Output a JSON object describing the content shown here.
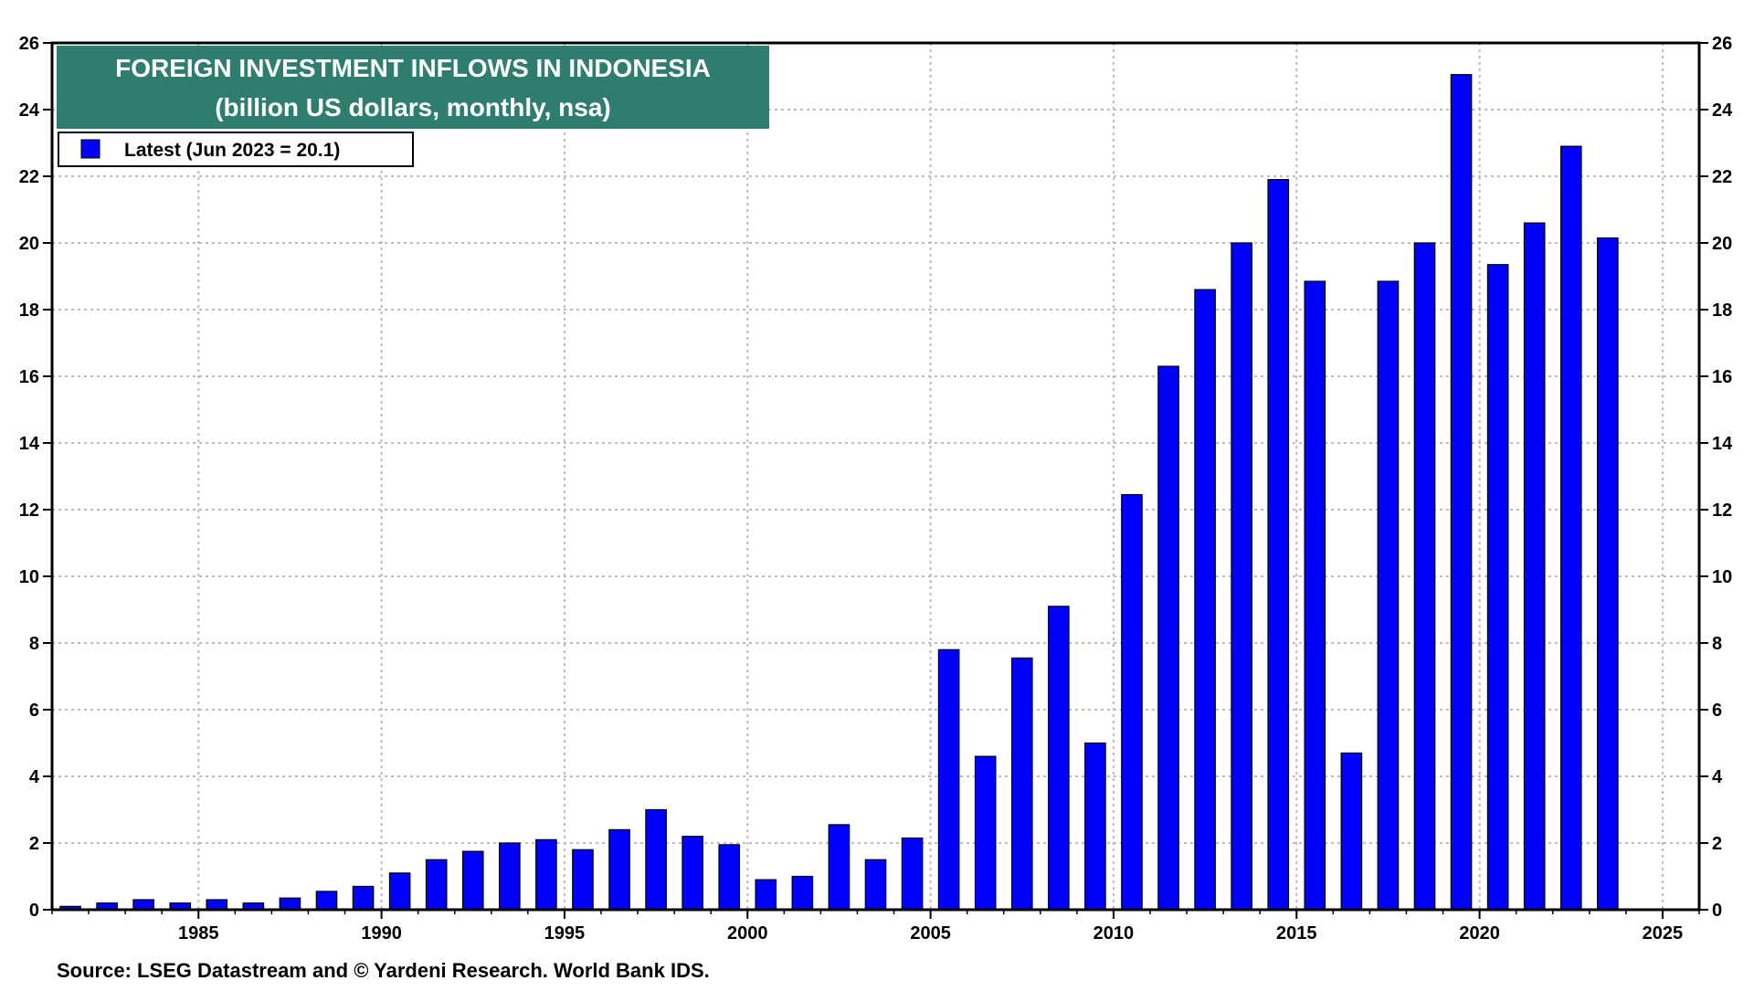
{
  "chart_data": {
    "type": "bar",
    "title": "FOREIGN INVESTMENT INFLOWS IN INDONESIA",
    "subtitle": "(billion US dollars, monthly, nsa)",
    "legend": {
      "label": "Latest (Jun 2023 = 20.1)",
      "placement": "top-left"
    },
    "source": "Source: LSEG Datastream and © Yardeni Research. World Bank IDS.",
    "x": [
      1981,
      1982,
      1983,
      1984,
      1985,
      1986,
      1987,
      1988,
      1989,
      1990,
      1991,
      1992,
      1993,
      1994,
      1995,
      1996,
      1997,
      1998,
      1999,
      2000,
      2001,
      2002,
      2003,
      2004,
      2005,
      2006,
      2007,
      2008,
      2009,
      2010,
      2011,
      2012,
      2013,
      2014,
      2015,
      2016,
      2017,
      2018,
      2019,
      2020,
      2021,
      2022,
      2023
    ],
    "values": [
      0.1,
      0.2,
      0.3,
      0.2,
      0.3,
      0.2,
      0.35,
      0.55,
      0.7,
      1.1,
      1.5,
      1.75,
      2.0,
      2.1,
      1.8,
      2.4,
      3.0,
      2.2,
      1.95,
      0.9,
      1.0,
      2.55,
      1.5,
      2.15,
      7.8,
      4.6,
      7.55,
      9.1,
      5.0,
      12.45,
      16.3,
      18.6,
      20.0,
      21.9,
      18.85,
      4.7,
      18.85,
      20.0,
      25.05,
      19.35,
      20.6,
      22.9,
      20.15
    ],
    "xticks": [
      "1985",
      "1990",
      "1995",
      "2000",
      "2005",
      "2010",
      "2015",
      "2020",
      "2025"
    ],
    "yticks": [
      "0",
      "2",
      "4",
      "6",
      "8",
      "10",
      "12",
      "14",
      "16",
      "18",
      "20",
      "22",
      "24",
      "26"
    ],
    "ylim": [
      0,
      26
    ],
    "xlim": [
      1981,
      2026
    ],
    "grid": true,
    "colors": {
      "bar": "#0000ff",
      "title_bg": "#2e7d6e",
      "grid": "#bbbbbb"
    }
  }
}
